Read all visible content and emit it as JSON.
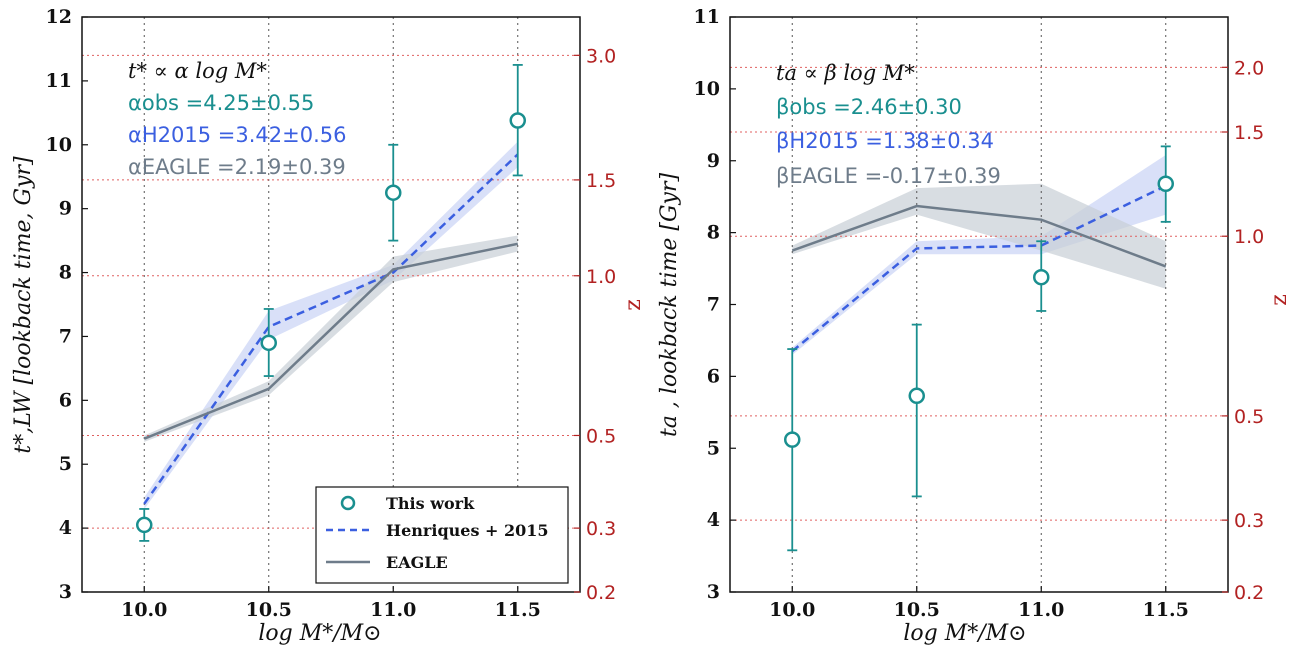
{
  "colors": {
    "obs": "#1a8f8f",
    "henriques": "#3b5fe0",
    "henriques_band": "#c9d3f5",
    "eagle": "#6e7c8a",
    "eagle_band": "#c8cfd6",
    "z_axis": "#b22222",
    "grid_x": "#555555",
    "grid_z": "#e06060"
  },
  "legend": {
    "obs": "This work",
    "henriques": "Henriques + 2015",
    "eagle": "EAGLE"
  },
  "chart_data": [
    {
      "type": "line",
      "xlabel": "log M*/M⊙",
      "ylabel": "t*,LW [lookback time,  Gyr]",
      "y2label": "z",
      "xlim": [
        9.75,
        11.75
      ],
      "ylim": [
        3,
        12
      ],
      "xticks": [
        "10.0",
        "10.5",
        "11.0",
        "11.5"
      ],
      "yticks": [
        "3",
        "4",
        "5",
        "6",
        "7",
        "8",
        "9",
        "10",
        "11",
        "12"
      ],
      "z_ticks": [
        {
          "label": "0.2",
          "t": 3.0
        },
        {
          "label": "0.3",
          "t": 4.0
        },
        {
          "label": "0.5",
          "t": 5.45
        },
        {
          "label": "1.0",
          "t": 7.95
        },
        {
          "label": "1.5",
          "t": 9.45
        },
        {
          "label": "3.0",
          "t": 11.4
        }
      ],
      "grid": true,
      "legend_position": "lower-right",
      "annotations": {
        "relation": "t* ∝ α log M*",
        "obs": "αobs =4.25±0.55",
        "h2015": "αH2015 =3.42±0.56",
        "eagle": "αEAGLE =2.19±0.39"
      },
      "x": [
        10.0,
        10.5,
        11.0,
        11.5
      ],
      "series": [
        {
          "name": "This work",
          "kind": "errorbar",
          "values": [
            4.05,
            6.9,
            9.25,
            10.38
          ],
          "err_low": [
            3.8,
            6.38,
            8.5,
            9.52
          ],
          "err_high": [
            4.3,
            7.43,
            10.0,
            11.25
          ]
        },
        {
          "name": "Henriques + 2015",
          "kind": "dashed",
          "values": [
            4.38,
            7.15,
            8.0,
            9.85
          ],
          "band_low": [
            4.3,
            6.95,
            7.88,
            9.65
          ],
          "band_high": [
            4.48,
            7.4,
            8.12,
            10.05
          ]
        },
        {
          "name": "EAGLE",
          "kind": "solid",
          "values": [
            5.4,
            6.18,
            8.05,
            8.45
          ],
          "band_low": [
            5.35,
            6.08,
            7.85,
            8.33
          ],
          "band_high": [
            5.45,
            6.3,
            8.25,
            8.58
          ]
        }
      ]
    },
    {
      "type": "line",
      "xlabel": "log M*/M⊙",
      "ylabel": "ta ,  lookback time [Gyr]",
      "y2label": "z",
      "xlim": [
        9.75,
        11.75
      ],
      "ylim": [
        3,
        11
      ],
      "xticks": [
        "10.0",
        "10.5",
        "11.0",
        "11.5"
      ],
      "yticks": [
        "3",
        "4",
        "5",
        "6",
        "7",
        "8",
        "9",
        "10",
        "11"
      ],
      "z_ticks": [
        {
          "label": "0.2",
          "t": 3.0
        },
        {
          "label": "0.3",
          "t": 4.0
        },
        {
          "label": "0.5",
          "t": 5.45
        },
        {
          "label": "1.0",
          "t": 7.95
        },
        {
          "label": "1.5",
          "t": 9.4
        },
        {
          "label": "2.0",
          "t": 10.3
        }
      ],
      "grid": true,
      "annotations": {
        "relation": "ta ∝ β log M*",
        "obs": "βobs =2.46±0.30",
        "h2015": "βH2015 =1.38±0.34",
        "eagle": "βEAGLE =-0.17±0.39"
      },
      "x": [
        10.0,
        10.5,
        11.0,
        11.5
      ],
      "series": [
        {
          "name": "This work",
          "kind": "errorbar",
          "values": [
            5.12,
            5.73,
            7.38,
            8.68
          ],
          "err_low": [
            3.58,
            4.33,
            6.91,
            8.15
          ],
          "err_high": [
            6.38,
            6.72,
            7.88,
            9.2
          ]
        },
        {
          "name": "Henriques + 2015",
          "kind": "dashed",
          "values": [
            6.35,
            7.78,
            7.82,
            8.65
          ],
          "band_low": [
            6.3,
            7.7,
            7.7,
            8.25
          ],
          "band_high": [
            6.4,
            7.88,
            7.95,
            9.08
          ]
        },
        {
          "name": "EAGLE",
          "kind": "solid",
          "values": [
            7.75,
            8.37,
            8.18,
            7.53
          ],
          "band_low": [
            7.7,
            8.25,
            7.75,
            7.22
          ],
          "band_high": [
            7.82,
            8.62,
            8.68,
            7.88
          ]
        }
      ]
    }
  ]
}
